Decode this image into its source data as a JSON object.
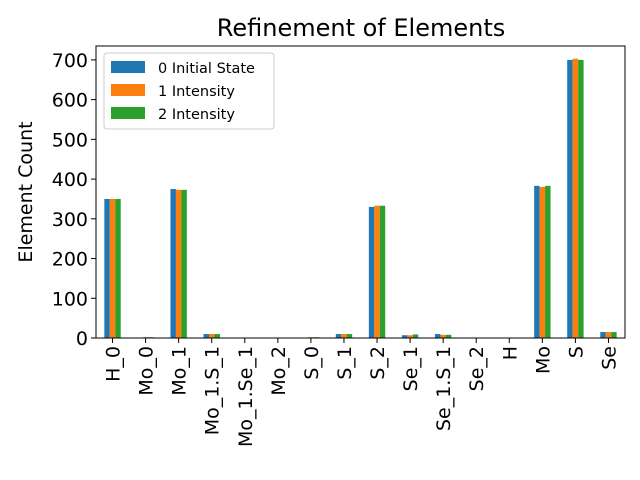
{
  "chart_data": {
    "type": "bar",
    "title": "Refinement of Elements",
    "xlabel": "",
    "ylabel": "Element Count",
    "ylim": [
      0,
      735
    ],
    "yticks": [
      0,
      100,
      200,
      300,
      400,
      500,
      600,
      700
    ],
    "legend_position": "top-left",
    "grid": false,
    "categories": [
      "H_0",
      "Mo_0",
      "Mo_1",
      "Mo_1.S_1",
      "Mo_1.Se_1",
      "Mo_2",
      "S_0",
      "S_1",
      "S_2",
      "Se_1",
      "Se_1.S_1",
      "Se_2",
      "H",
      "Mo",
      "S",
      "Se"
    ],
    "series": [
      {
        "name": "0 Initial State",
        "color": "#1f77b4",
        "values": [
          350,
          1,
          375,
          10,
          0,
          0,
          1,
          10,
          330,
          7,
          10,
          0,
          0,
          383,
          700,
          15
        ]
      },
      {
        "name": "1 Intensity",
        "color": "#ff7f0e",
        "values": [
          350,
          2,
          373,
          10,
          0,
          0,
          2,
          10,
          333,
          7,
          8,
          0,
          0,
          380,
          703,
          15
        ]
      },
      {
        "name": "2 Intensity",
        "color": "#2ca02c",
        "values": [
          350,
          2,
          373,
          10,
          0,
          0,
          2,
          10,
          333,
          9,
          8,
          0,
          0,
          383,
          700,
          15
        ]
      }
    ]
  }
}
